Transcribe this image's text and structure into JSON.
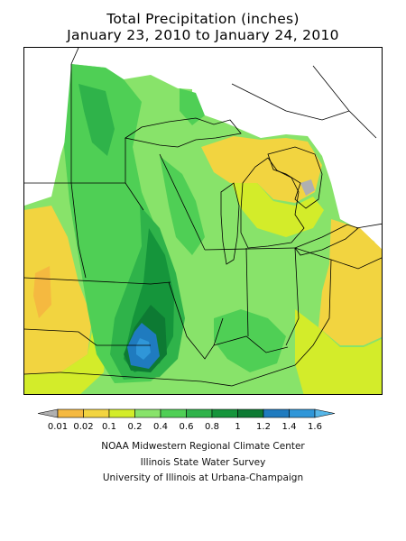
{
  "title": {
    "line1": "Total Precipitation (inches)",
    "line2": "January 23, 2010 to January 24, 2010"
  },
  "legend": {
    "ticks": [
      "0.01",
      "0.02",
      "0.1",
      "0.2",
      "0.4",
      "0.6",
      "0.8",
      "1",
      "1.2",
      "1.4",
      "1.6"
    ],
    "colors": [
      "#b0b0b0",
      "#f5b940",
      "#f2d440",
      "#d3ec2a",
      "#88e36a",
      "#4fcf55",
      "#2fb34a",
      "#15953b",
      "#0d7a33",
      "#1f7bbf",
      "#2f96d8",
      "#56b6e8"
    ]
  },
  "credits": {
    "line1": "NOAA Midwestern Regional Climate Center",
    "line2": "Illinois State Water Survey",
    "line3": "University of Illinois at Urbana-Champaign"
  }
}
